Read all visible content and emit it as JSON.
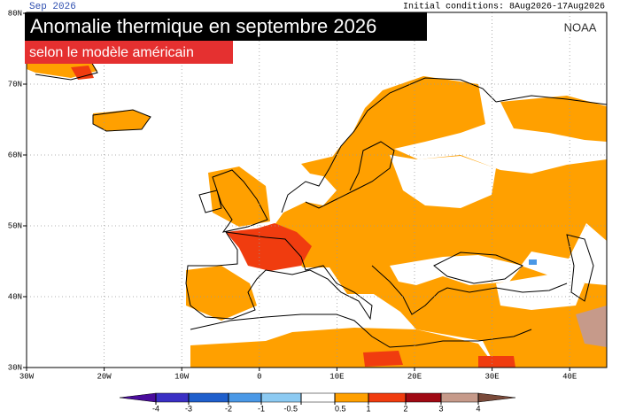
{
  "header": {
    "period": "Sep 2026",
    "initial_conditions": "Initial conditions: 8Aug2026-17Aug2026",
    "title": "Anomalie thermique en septembre 2026",
    "subtitle": "selon le modèle américain",
    "source": "NOAA"
  },
  "map": {
    "lon_labels": [
      "30W",
      "20W",
      "10W",
      "0",
      "10E",
      "20E",
      "30E",
      "40E"
    ],
    "lat_labels": [
      "80N",
      "70N",
      "60N",
      "50N",
      "40N",
      "30N"
    ]
  },
  "legend": {
    "ticks": [
      -4,
      -3,
      -2,
      -1,
      -0.5,
      0.5,
      1,
      2,
      3,
      4
    ],
    "colors": [
      "#4a0c9c",
      "#3a2fc4",
      "#1f5fcc",
      "#4a98e6",
      "#8ccaf2",
      "#ffffff",
      "#ffa000",
      "#f03c0f",
      "#a00a14",
      "#c69a8a",
      "#7a4a3a"
    ]
  }
}
